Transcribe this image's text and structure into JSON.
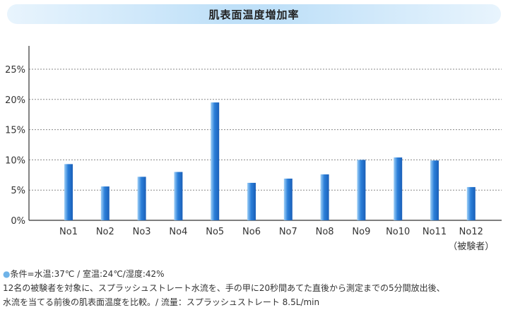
{
  "header": {
    "title": "肌表面温度増加率"
  },
  "chart_data": {
    "type": "bar",
    "categories": [
      "No1",
      "No2",
      "No3",
      "No4",
      "No5",
      "No6",
      "No7",
      "No8",
      "No9",
      "No10",
      "No11",
      "No12"
    ],
    "category_sublabels": {
      "No12": "（被験者）"
    },
    "values": [
      9.3,
      5.6,
      7.2,
      8.0,
      19.5,
      6.2,
      6.9,
      7.6,
      10.0,
      10.4,
      9.9,
      5.5
    ],
    "y_ticks": [
      "0%",
      "5%",
      "10%",
      "15%",
      "20%",
      "25%"
    ],
    "ylim": [
      0,
      25
    ],
    "grid": "dotted horizontal",
    "bar_color": "#2b7fd9"
  },
  "notes": {
    "line1_bullet": "●",
    "line1": "条件=水温:37℃ / 室温:24℃/湿度:42%",
    "line2": "12名の被験者を対象に、スプラッシュストレート水流を、手の甲に20秒間あてた直後から測定までの5分間放出後、",
    "line3": "水流を当てる前後の肌表面温度を比較。/ 流量：スプラッシュストレート 8.5L/min"
  }
}
